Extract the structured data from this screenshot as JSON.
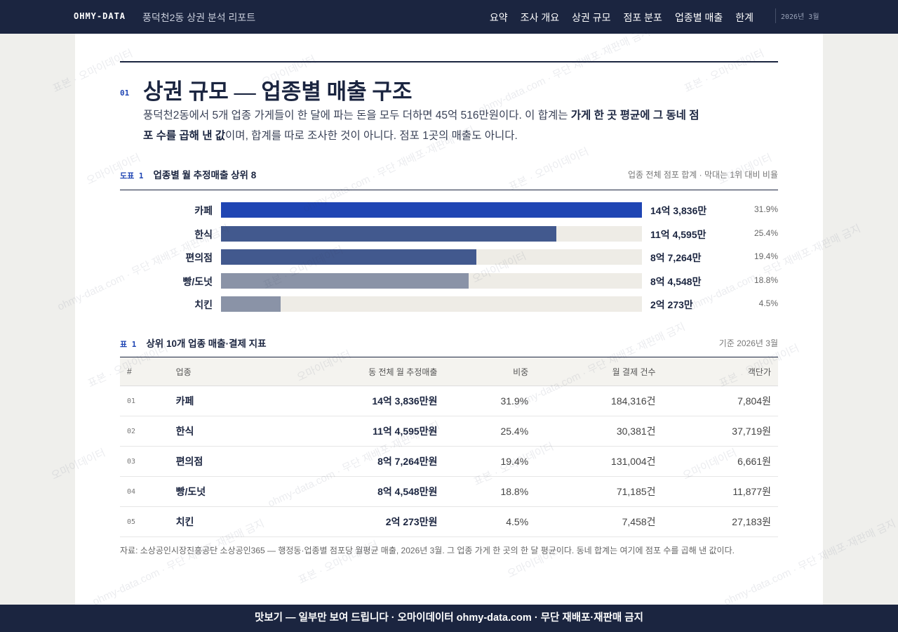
{
  "nav": {
    "brand": "OHMY-DATA",
    "report": "풍덕천2동 상권 분석 리포트",
    "links": [
      "요약",
      "조사 개요",
      "상권 규모",
      "점포 분포",
      "업종별 매출",
      "한계"
    ],
    "date": "2026년 3월"
  },
  "section": {
    "number": "01",
    "title": "상권 규모 — 업종별 매출 구조",
    "lead": [
      "풍덕천2동에서 5개 업종 가게들이 한 달에 파는 돈을 모두 더하면 45억 516만원이다. 이 합계는 ",
      "가게 한 곳 평균에 그 동네 점포 수를 곱해 낸 값",
      "이며, 합계를 따로 조사한 것이 아니다. 점포 1곳의 매출도 아니다."
    ]
  },
  "chart_data": {
    "type": "bar",
    "orientation": "horizontal",
    "label": "도표 1",
    "title": "업종별 월 추정매출 상위 8",
    "note": "업종 전체 점포 합계 · 막대는 1위 대비 비율",
    "categories": [
      "카페",
      "한식",
      "편의점",
      "빵/도넛",
      "치킨"
    ],
    "values": [
      143836,
      114595,
      87264,
      84548,
      20273
    ],
    "value_labels": [
      "14억 3,836만",
      "11억 4,595만",
      "8억 7,264만",
      "8억 4,548만",
      "2억 273만"
    ],
    "shares": [
      "31.9%",
      "25.4%",
      "19.4%",
      "18.8%",
      "4.5%"
    ],
    "colors": [
      "#1f45b3",
      "#42598e",
      "#42598e",
      "#8a93a7",
      "#8a93a7"
    ],
    "track_color": "#eeece6"
  },
  "table": {
    "label": "표 1",
    "title": "상위 10개 업종 매출·결제 지표",
    "note": "기준 2026년 3월",
    "headers": [
      "#",
      "업종",
      "동 전체 월 추정매출",
      "비중",
      "월 결제 건수",
      "객단가"
    ],
    "rows": [
      [
        "01",
        "카페",
        "14억 3,836만원",
        "31.9%",
        "184,316건",
        "7,804원"
      ],
      [
        "02",
        "한식",
        "11억 4,595만원",
        "25.4%",
        "30,381건",
        "37,719원"
      ],
      [
        "03",
        "편의점",
        "8억 7,264만원",
        "19.4%",
        "131,004건",
        "6,661원"
      ],
      [
        "04",
        "빵/도넛",
        "8억 4,548만원",
        "18.8%",
        "71,185건",
        "11,877원"
      ],
      [
        "05",
        "치킨",
        "2억 273만원",
        "4.5%",
        "7,458건",
        "27,183원"
      ]
    ]
  },
  "source": "자료: 소상공인시장진흥공단 소상공인365 — 행정동·업종별 점포당 월평균 매출, 2026년 3월. 그 업종 가게 한 곳의 한 달 평균이다. 동네 합계는 여기에 점포 수를 곱해 낸 값이다.",
  "footer": "맛보기 — 일부만 보여 드립니다 · 오마이데이터 ohmy-data.com · 무단 재배포·재판매 금지",
  "watermarks": [
    "표본 · 오마이데이터",
    "오마이데이터",
    "ohmy-data.com · 무단 재배포·재판매 금지"
  ]
}
